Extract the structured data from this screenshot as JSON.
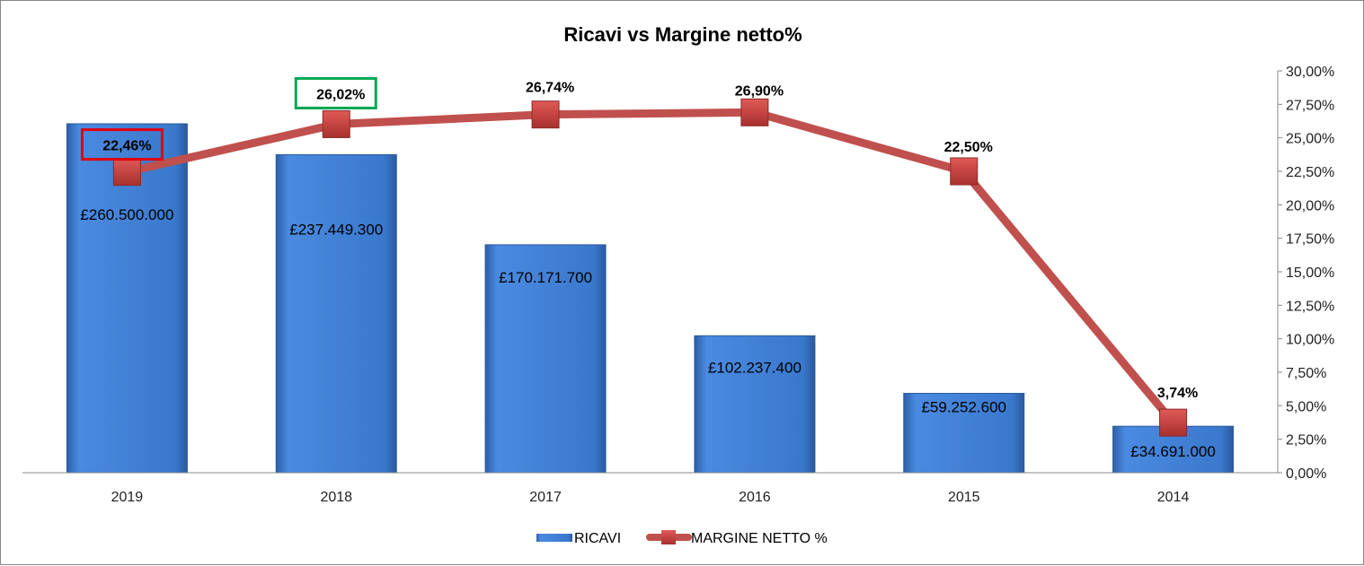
{
  "chart_data": {
    "type": "bar+line",
    "title": "Ricavi vs Margine netto%",
    "categories": [
      "2019",
      "2018",
      "2017",
      "2016",
      "2015",
      "2014"
    ],
    "series": [
      {
        "name": "RICAVI",
        "type": "bar",
        "axis": "primary",
        "values": [
          260500000,
          237449300,
          170171700,
          102237400,
          59252600,
          34691000
        ],
        "labels": [
          "£260.500.000",
          "£237.449.300",
          "£170.171.700",
          "£102.237.400",
          "£59.252.600",
          "£34.691.000"
        ],
        "color": "#3c7dd0"
      },
      {
        "name": "MARGINE NETTO %",
        "type": "line",
        "axis": "secondary",
        "values": [
          22.46,
          26.02,
          26.74,
          26.9,
          22.5,
          3.74
        ],
        "labels": [
          "22,46%",
          "26,02%",
          "26,74%",
          "26,90%",
          "22,50%",
          "3,74%"
        ],
        "color": "#c0504d"
      }
    ],
    "primary_ylim": [
      0,
      300000000
    ],
    "primary_axis_visible": false,
    "secondary_ylim": [
      0,
      30
    ],
    "secondary_ticks": [
      "0,00%",
      "2,50%",
      "5,00%",
      "7,50%",
      "10,00%",
      "12,50%",
      "15,00%",
      "17,50%",
      "20,00%",
      "22,50%",
      "25,00%",
      "27,50%",
      "30,00%"
    ],
    "grid": false,
    "legend": "bottom",
    "highlights": [
      {
        "category": "2019",
        "color": "#e3000f"
      },
      {
        "category": "2018",
        "color": "#00a651"
      }
    ]
  }
}
